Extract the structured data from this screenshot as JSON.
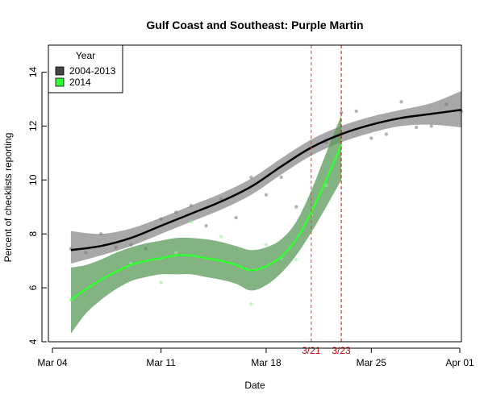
{
  "chart_data": {
    "type": "line",
    "title": "Gulf Coast and Southeast: Purple Martin",
    "xlabel": "Date",
    "ylabel": "Percent of checklists reporting",
    "xlim": [
      3.5,
      31
    ],
    "ylim": [
      4,
      15
    ],
    "x_ticks": [
      {
        "x": 4,
        "label": "Mar 04"
      },
      {
        "x": 11,
        "label": "Mar 11"
      },
      {
        "x": 18,
        "label": "Mar 18"
      },
      {
        "x": 25,
        "label": "Mar 25"
      },
      {
        "x": 32,
        "label": "Apr 01"
      }
    ],
    "y_ticks": [
      4,
      6,
      8,
      10,
      12,
      14
    ],
    "legend": {
      "title": "Year",
      "position": "top-left",
      "entries": [
        {
          "label": "2004-2013",
          "color": "#444444"
        },
        {
          "label": "2014",
          "color": "#33ff33"
        }
      ]
    },
    "annotations": [
      {
        "x": 21,
        "label": "3/21",
        "color": "#ff3333"
      },
      {
        "x": 23,
        "label": "3/23",
        "color": "#cc0000"
      }
    ],
    "series": [
      {
        "name": "2004-2013",
        "color": "#000000",
        "band_color": "#999999",
        "x": [
          5,
          7,
          9,
          11,
          13,
          15,
          17,
          19,
          21,
          23,
          25,
          27,
          29,
          31
        ],
        "y": [
          7.4,
          7.55,
          7.85,
          8.3,
          8.75,
          9.2,
          9.75,
          10.5,
          11.2,
          11.7,
          12.05,
          12.3,
          12.45,
          12.6
        ],
        "lower": [
          6.9,
          7.2,
          7.55,
          8.0,
          8.45,
          8.9,
          9.45,
          10.2,
          10.9,
          11.4,
          11.75,
          12.0,
          12.05,
          11.95
        ],
        "upper": [
          8.1,
          8.0,
          8.2,
          8.6,
          9.05,
          9.5,
          10.05,
          10.8,
          11.5,
          12.0,
          12.35,
          12.6,
          12.85,
          13.3
        ],
        "points": [
          [
            5,
            7.45
          ],
          [
            6,
            7.3
          ],
          [
            7,
            8.0
          ],
          [
            8,
            7.5
          ],
          [
            9,
            7.6
          ],
          [
            10,
            7.45
          ],
          [
            11,
            8.55
          ],
          [
            12,
            8.8
          ],
          [
            13,
            9.05
          ],
          [
            14,
            8.3
          ],
          [
            15,
            9.3
          ],
          [
            16,
            8.6
          ],
          [
            17,
            10.1
          ],
          [
            18,
            9.45
          ],
          [
            19,
            10.1
          ],
          [
            20,
            9.0
          ],
          [
            22,
            11.4
          ],
          [
            23,
            12.5
          ],
          [
            24,
            12.55
          ],
          [
            25,
            11.55
          ],
          [
            26,
            11.7
          ],
          [
            27,
            12.9
          ],
          [
            28,
            11.95
          ],
          [
            29,
            12.0
          ],
          [
            30,
            12.8
          ],
          [
            31,
            12.55
          ]
        ]
      },
      {
        "name": "2014",
        "color": "#33ff33",
        "band_color": "#5a9a5a",
        "x": [
          5,
          6,
          7,
          8,
          9,
          10,
          11,
          12,
          13,
          14,
          15,
          16,
          17,
          18,
          19,
          20,
          21,
          22,
          23
        ],
        "y": [
          5.55,
          5.95,
          6.3,
          6.6,
          6.85,
          7.0,
          7.1,
          7.2,
          7.2,
          7.1,
          7.0,
          6.85,
          6.65,
          6.8,
          7.15,
          7.8,
          8.8,
          10.0,
          11.3
        ],
        "lower": [
          4.3,
          5.05,
          5.55,
          5.95,
          6.25,
          6.4,
          6.5,
          6.5,
          6.5,
          6.4,
          6.3,
          6.15,
          5.9,
          6.1,
          6.55,
          7.2,
          8.05,
          9.0,
          10.0
        ],
        "upper": [
          6.75,
          6.85,
          7.05,
          7.3,
          7.5,
          7.65,
          7.75,
          7.85,
          7.85,
          7.8,
          7.7,
          7.55,
          7.4,
          7.5,
          7.8,
          8.45,
          9.6,
          11.0,
          12.4
        ],
        "points": [
          [
            5,
            5.55
          ],
          [
            9,
            6.9
          ],
          [
            11,
            6.2
          ],
          [
            12,
            7.3
          ],
          [
            13,
            8.45
          ],
          [
            15,
            7.9
          ],
          [
            17,
            5.4
          ],
          [
            18,
            7.6
          ],
          [
            19,
            7.1
          ],
          [
            20,
            7.05
          ],
          [
            21,
            8.7
          ],
          [
            22,
            9.8
          ]
        ]
      }
    ]
  }
}
